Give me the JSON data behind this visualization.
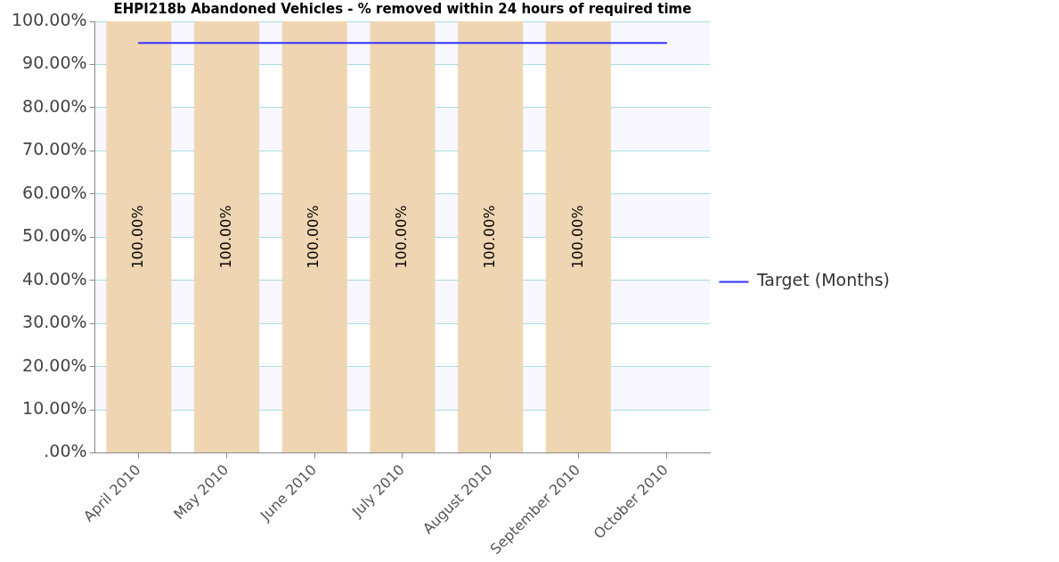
{
  "chart_data": {
    "type": "bar",
    "title": "EHPI218b Abandoned Vehicles - % removed within 24 hours of required time",
    "categories": [
      "April 2010",
      "May 2010",
      "June 2010",
      "July 2010",
      "August 2010",
      "September 2010",
      "October 2010"
    ],
    "series": [
      {
        "color": "#efd5b2",
        "values": [
          100,
          100,
          100,
          100,
          100,
          100,
          null
        ],
        "value_labels": [
          "100.00%",
          "100.00%",
          "100.00%",
          "100.00%",
          "100.00%",
          "100.00%",
          null
        ]
      },
      {
        "type": "line",
        "name": "Target (Months)",
        "color": "#3333ff",
        "values": [
          95,
          95,
          95,
          95,
          95,
          95,
          95
        ]
      }
    ],
    "ylim": [
      0,
      100
    ],
    "yticks": [
      {
        "value": 0,
        "label": ".00%"
      },
      {
        "value": 10,
        "label": "10.00%"
      },
      {
        "value": 20,
        "label": "20.00%"
      },
      {
        "value": 30,
        "label": "30.00%"
      },
      {
        "value": 40,
        "label": "40.00%"
      },
      {
        "value": 50,
        "label": "50.00%"
      },
      {
        "value": 60,
        "label": "60.00%"
      },
      {
        "value": 70,
        "label": "70.00%"
      },
      {
        "value": 80,
        "label": "80.00%"
      },
      {
        "value": 90,
        "label": "90.00%"
      },
      {
        "value": 100,
        "label": "100.00%"
      }
    ],
    "grid": "y",
    "legend": "right",
    "marker": "none",
    "line_style": "solid"
  }
}
